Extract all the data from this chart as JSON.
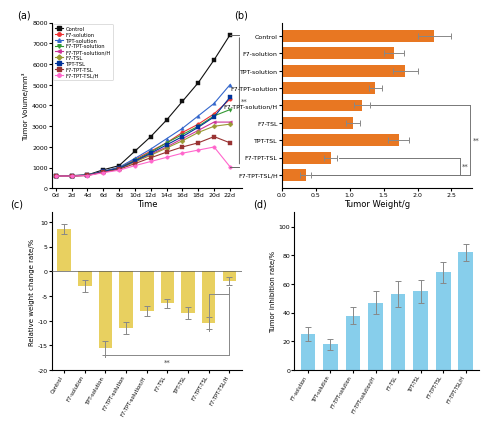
{
  "panel_a": {
    "time": [
      0,
      2,
      4,
      6,
      8,
      10,
      12,
      14,
      16,
      18,
      20,
      22
    ],
    "series": {
      "Control": [
        600,
        620,
        650,
        900,
        1100,
        1800,
        2500,
        3300,
        4200,
        5100,
        6200,
        7400
      ],
      "F7-solution": [
        600,
        610,
        640,
        820,
        1000,
        1400,
        1800,
        2200,
        2700,
        3100,
        3600,
        4300
      ],
      "TPT-solution": [
        600,
        615,
        645,
        830,
        1020,
        1450,
        1900,
        2400,
        2900,
        3500,
        4100,
        5000
      ],
      "F7-TPT-solution": [
        600,
        608,
        635,
        810,
        980,
        1350,
        1750,
        2200,
        2600,
        3000,
        3500,
        3800
      ],
      "F7-TPT-solution/H": [
        600,
        605,
        630,
        800,
        960,
        1300,
        1650,
        2000,
        2400,
        2800,
        3200,
        3200
      ],
      "F7-TSL": [
        600,
        608,
        632,
        800,
        950,
        1280,
        1600,
        1950,
        2300,
        2700,
        3000,
        3100
      ],
      "TPT-TSL": [
        600,
        610,
        640,
        820,
        970,
        1320,
        1700,
        2100,
        2500,
        2950,
        3450,
        4400
      ],
      "F7-TPT-TSL": [
        600,
        602,
        625,
        785,
        920,
        1200,
        1480,
        1750,
        2000,
        2200,
        2500,
        2200
      ],
      "F7-TPT-TSL/H": [
        600,
        598,
        618,
        760,
        880,
        1100,
        1300,
        1500,
        1700,
        1850,
        2000,
        1050
      ]
    },
    "colors": {
      "Control": "#111111",
      "F7-solution": "#EE3333",
      "TPT-solution": "#3366CC",
      "F7-TPT-solution": "#339933",
      "F7-TPT-solution/H": "#CC3399",
      "F7-TSL": "#999933",
      "TPT-TSL": "#003399",
      "F7-TPT-TSL": "#993333",
      "F7-TPT-TSL/H": "#FF66CC"
    },
    "markers": {
      "Control": "s",
      "F7-solution": "o",
      "TPT-solution": "^",
      "F7-TPT-solution": "v",
      "F7-TPT-solution/H": "<",
      "F7-TSL": "D",
      "TPT-TSL": "s",
      "F7-TPT-TSL": "s",
      "F7-TPT-TSL/H": "o"
    },
    "ylabel": "Tumor Volume/mm³",
    "xlabel": "Time",
    "ylim": [
      0,
      8000
    ],
    "yticks": [
      0,
      1000,
      2000,
      3000,
      4000,
      5000,
      6000,
      7000,
      8000
    ]
  },
  "panel_b": {
    "categories": [
      "F7-TPT-TSL/H",
      "F7-TPT-TSL",
      "TPT-TSL",
      "F7-TSL",
      "F7-TPT-solution/H",
      "F7-TPT-solution",
      "TPT-solution",
      "F7-solution",
      "Control"
    ],
    "values": [
      0.35,
      0.72,
      1.72,
      1.05,
      1.18,
      1.38,
      1.82,
      1.65,
      2.25
    ],
    "errors": [
      0.08,
      0.1,
      0.15,
      0.1,
      0.12,
      0.1,
      0.18,
      0.15,
      0.25
    ],
    "color": "#E87722",
    "xlabel": "Tumor Weight/g",
    "xlim": [
      0,
      2.8
    ],
    "xticks": [
      0.0,
      0.5,
      1.0,
      1.5,
      2.0,
      2.5
    ]
  },
  "panel_c": {
    "categories": [
      "Control",
      "F7-solution",
      "TPT-solution",
      "F7-TPT-solution",
      "F7-TPT-solution/H",
      "F7-TSL",
      "TPT-TSL",
      "F7-TPT-TSL",
      "F7-TPT-TSL/H"
    ],
    "values": [
      8.5,
      -3.0,
      -15.5,
      -11.5,
      -8.0,
      -6.5,
      -8.5,
      -10.5,
      -2.0
    ],
    "errors": [
      1.0,
      1.2,
      1.5,
      1.2,
      1.0,
      1.0,
      1.2,
      1.2,
      0.8
    ],
    "color": "#E8D060",
    "ylabel": "Relative weight change rate/%",
    "ylim": [
      -20,
      12
    ],
    "yticks": [
      -20,
      -15,
      -10,
      -5,
      0,
      5,
      10
    ]
  },
  "panel_d": {
    "categories": [
      "F7-solution",
      "TPT-solution",
      "F7-TPT-solution",
      "F7-TPT-solution/H",
      "F7-TSL",
      "TPT-TSL",
      "F7-TPT-TSL",
      "F7-TPT-TSL/H"
    ],
    "values": [
      25,
      18,
      38,
      47,
      53,
      55,
      68,
      82
    ],
    "errors": [
      5,
      4,
      6,
      8,
      9,
      8,
      7,
      6
    ],
    "color": "#87CEEB",
    "ylabel": "Tumor inhibition rate/%",
    "ylim": [
      0,
      110
    ],
    "yticks": [
      0,
      20,
      40,
      60,
      80,
      100
    ]
  },
  "fig_background": "#FFFFFF"
}
